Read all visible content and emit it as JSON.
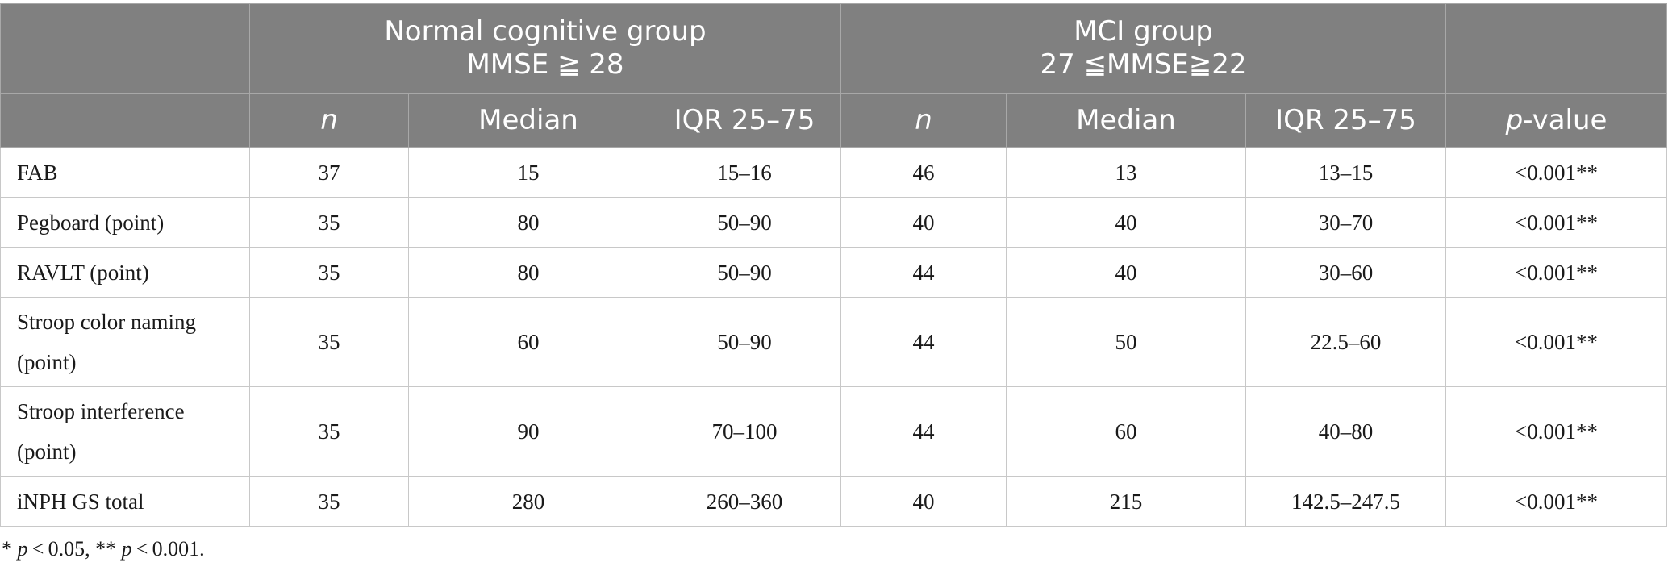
{
  "header": {
    "group1": {
      "line1": "Normal cognitive group",
      "line2": "MMSE ≧ 28"
    },
    "group2": {
      "line1": "MCI group",
      "line2": "27 ≦MMSE≧22"
    },
    "sub": {
      "n": "n",
      "median": "Median",
      "iqr": "IQR 25–75",
      "p_italic": "p",
      "p_rest": "-value"
    }
  },
  "rows": [
    {
      "label": "FAB",
      "n1": "37",
      "median1": "15",
      "iqr1": "15–16",
      "n2": "46",
      "median2": "13",
      "iqr2": "13–15",
      "p": "<0.001**"
    },
    {
      "label": "Pegboard (point)",
      "n1": "35",
      "median1": "80",
      "iqr1": "50–90",
      "n2": "40",
      "median2": "40",
      "iqr2": "30–70",
      "p": "<0.001**"
    },
    {
      "label": "RAVLT (point)",
      "n1": "35",
      "median1": "80",
      "iqr1": "50–90",
      "n2": "44",
      "median2": "40",
      "iqr2": "30–60",
      "p": "<0.001**"
    },
    {
      "label_line1": "Stroop color naming",
      "label_line2": "(point)",
      "n1": "35",
      "median1": "60",
      "iqr1": "50–90",
      "n2": "44",
      "median2": "50",
      "iqr2": "22.5–60",
      "p": "<0.001**"
    },
    {
      "label_line1": "Stroop interference",
      "label_line2": "(point)",
      "n1": "35",
      "median1": "90",
      "iqr1": "70–100",
      "n2": "44",
      "median2": "60",
      "iqr2": "40–80",
      "p": "<0.001**"
    },
    {
      "label": "iNPH GS total",
      "n1": "35",
      "median1": "280",
      "iqr1": "260–360",
      "n2": "40",
      "median2": "215",
      "iqr2": "142.5–247.5",
      "p": "<0.001**"
    }
  ],
  "footnote": {
    "star1": "* ",
    "p1": "p",
    "t1": " < 0.05, ** ",
    "p2": "p",
    "t2": " < 0.001."
  }
}
